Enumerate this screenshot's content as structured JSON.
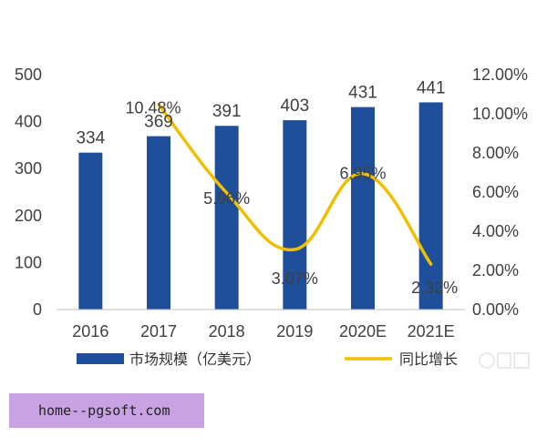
{
  "chart_data": {
    "type": "bar",
    "categories": [
      "2016",
      "2017",
      "2018",
      "2019",
      "2020E",
      "2021E"
    ],
    "series": [
      {
        "name": "市场规模（亿美元）",
        "type": "bar",
        "axis": "left",
        "color": "#1f4e9a",
        "values": [
          334,
          369,
          391,
          403,
          431,
          441
        ],
        "labels": [
          "334",
          "369",
          "391",
          "403",
          "431",
          "441"
        ]
      },
      {
        "name": "同比增长",
        "type": "line",
        "axis": "right",
        "color": "#f0c000",
        "values": [
          null,
          10.48,
          5.96,
          3.07,
          6.95,
          2.32
        ],
        "labels": [
          "",
          "10.48%",
          "5.96%",
          "3.07%",
          "6.95%",
          "2.32%"
        ]
      }
    ],
    "y_left": {
      "range": [
        0,
        500
      ],
      "ticks": [
        0,
        100,
        200,
        300,
        400,
        500
      ],
      "tick_labels": [
        "0",
        "100",
        "200",
        "300",
        "400",
        "500"
      ]
    },
    "y_right": {
      "range": [
        0,
        12
      ],
      "ticks": [
        0,
        2,
        4,
        6,
        8,
        10,
        12
      ],
      "tick_labels": [
        "0.00%",
        "2.00%",
        "4.00%",
        "6.00%",
        "8.00%",
        "10.00%",
        "12.00%"
      ]
    },
    "grid": false,
    "legend_position": "bottom"
  },
  "watermark_text": "home--pgsoft.com"
}
